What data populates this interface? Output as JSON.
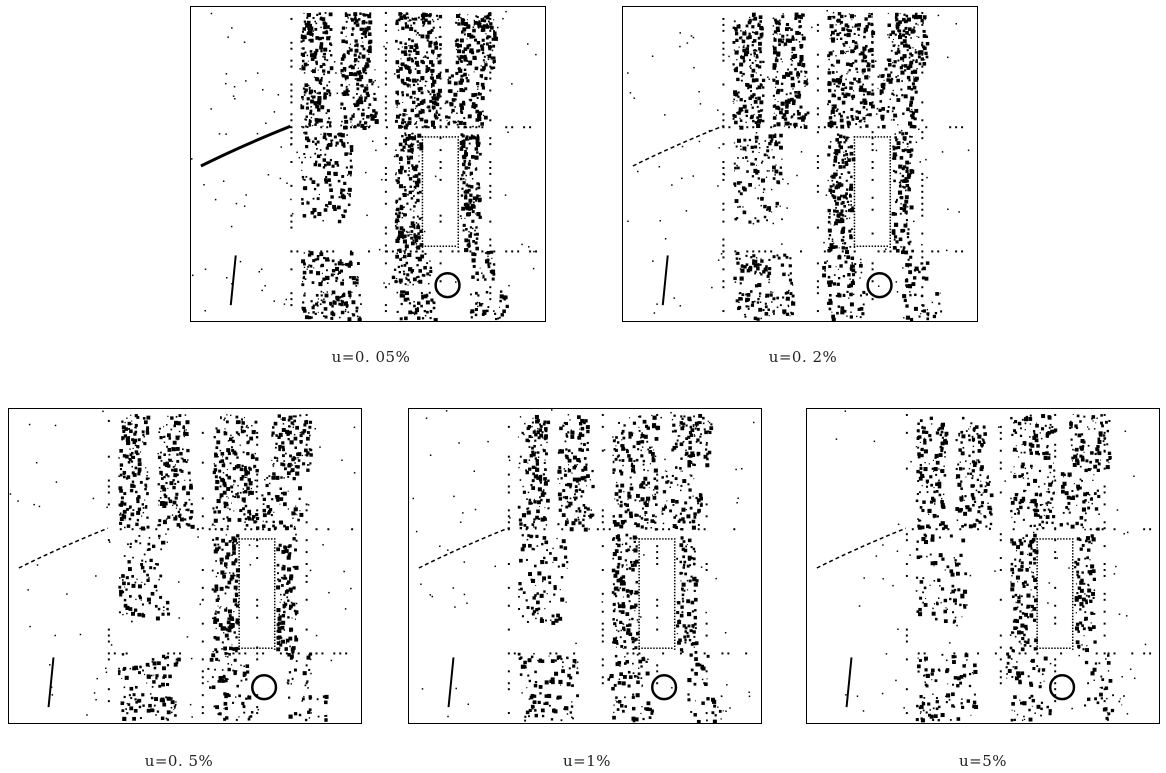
{
  "panels": [
    {
      "caption": "u=0. 05%"
    },
    {
      "caption": "u=0. 2%"
    },
    {
      "caption": "u=0. 5%"
    },
    {
      "caption": "u=1%"
    },
    {
      "caption": "u=5%"
    }
  ]
}
